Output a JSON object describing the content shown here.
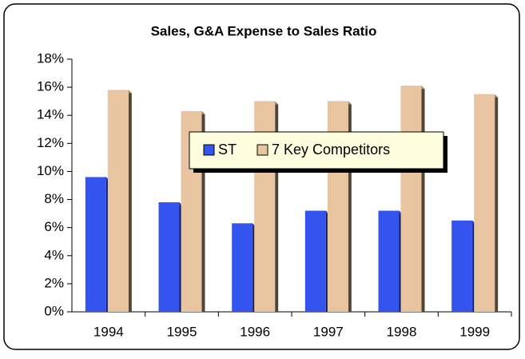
{
  "chart_data": {
    "type": "bar",
    "title": "Sales, G&A Expense to Sales Ratio",
    "categories": [
      "1994",
      "1995",
      "1996",
      "1997",
      "1998",
      "1999"
    ],
    "series": [
      {
        "name": "ST",
        "color": "#3355ee",
        "values": [
          9.6,
          7.8,
          6.3,
          7.2,
          7.2,
          6.5
        ]
      },
      {
        "name": "7 Key Competitors",
        "color": "#e8c4a0",
        "values": [
          15.8,
          14.3,
          15.0,
          15.0,
          16.1,
          15.5
        ]
      }
    ],
    "ylim": [
      0,
      18
    ],
    "yticks": [
      {
        "value": 0,
        "label": "0%"
      },
      {
        "value": 2,
        "label": "2%"
      },
      {
        "value": 4,
        "label": "4%"
      },
      {
        "value": 6,
        "label": "6%"
      },
      {
        "value": 8,
        "label": "8%"
      },
      {
        "value": 10,
        "label": "10%"
      },
      {
        "value": 12,
        "label": "12%"
      },
      {
        "value": 14,
        "label": "14%"
      },
      {
        "value": 16,
        "label": "16%"
      },
      {
        "value": 18,
        "label": "18%"
      }
    ],
    "legend": "center"
  }
}
